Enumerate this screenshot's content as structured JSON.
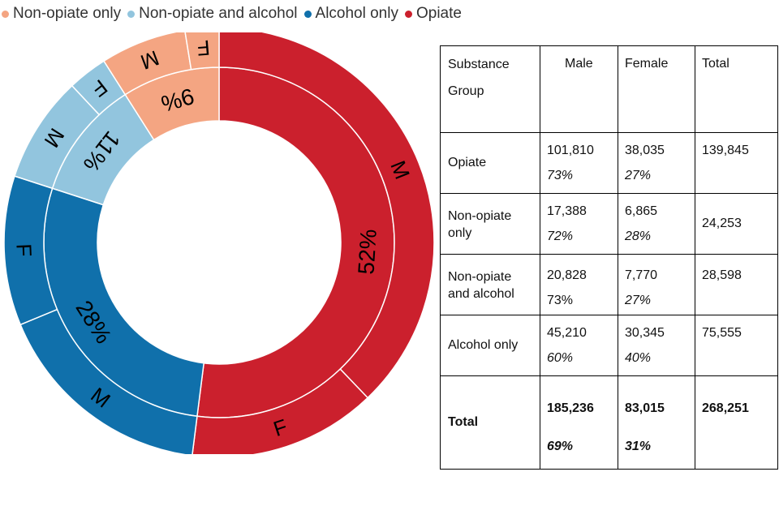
{
  "legend": [
    {
      "label": "Non-opiate only",
      "color": "#f4a582"
    },
    {
      "label": "Non-opiate and alcohol",
      "color": "#92c5de"
    },
    {
      "label": "Alcohol only",
      "color": "#1070ab"
    },
    {
      "label": "Opiate",
      "color": "#cb202d"
    }
  ],
  "chart_data": {
    "type": "pie",
    "subtype": "nested-donut",
    "inner_ring": [
      {
        "group": "Opiate",
        "value": 52,
        "label": "52%",
        "color": "#cb202d"
      },
      {
        "group": "Alcohol only",
        "value": 28,
        "label": "28%",
        "color": "#1070ab"
      },
      {
        "group": "Non-opiate and alcohol",
        "value": 11,
        "label": "11%",
        "color": "#92c5de"
      },
      {
        "group": "Non-opiate only",
        "value": 9,
        "label": "9%",
        "color": "#f4a582"
      }
    ],
    "outer_ring": [
      {
        "group": "Opiate",
        "sex": "M",
        "value": 101810,
        "color": "#cb202d"
      },
      {
        "group": "Opiate",
        "sex": "F",
        "value": 38035,
        "color": "#cb202d"
      },
      {
        "group": "Alcohol only",
        "sex": "M",
        "value": 45210,
        "color": "#1070ab"
      },
      {
        "group": "Alcohol only",
        "sex": "F",
        "value": 30345,
        "color": "#1070ab"
      },
      {
        "group": "Non-opiate and alcohol",
        "sex": "M",
        "value": 20828,
        "color": "#92c5de"
      },
      {
        "group": "Non-opiate and alcohol",
        "sex": "F",
        "value": 7770,
        "color": "#92c5de"
      },
      {
        "group": "Non-opiate only",
        "sex": "M",
        "value": 17388,
        "color": "#f4a582"
      },
      {
        "group": "Non-opiate only",
        "sex": "F",
        "value": 6865,
        "color": "#f4a582"
      }
    ]
  },
  "table": {
    "headers": [
      "Substance Group",
      "Male",
      "Female",
      "Total"
    ],
    "rows": [
      {
        "group": "Opiate",
        "male": "101,810",
        "male_pct": "73%",
        "female": "38,035",
        "female_pct": "27%",
        "total": "139,845"
      },
      {
        "group": "Non-opiate only",
        "male": "17,388",
        "male_pct": "72%",
        "female": "6,865",
        "female_pct": "28%",
        "total": "24,253"
      },
      {
        "group": "Non-opiate and alcohol",
        "male": "20,828",
        "male_pct": "73%",
        "female": "7,770",
        "female_pct": "27%",
        "total": "28,598"
      },
      {
        "group": "Alcohol only",
        "male": "45,210",
        "male_pct": "60%",
        "female": "30,345",
        "female_pct": "40%",
        "total": "75,555"
      }
    ],
    "total_row": {
      "group": "Total",
      "male": "185,236",
      "male_pct": "69%",
      "female": "83,015",
      "female_pct": "31%",
      "total": "268,251"
    }
  }
}
